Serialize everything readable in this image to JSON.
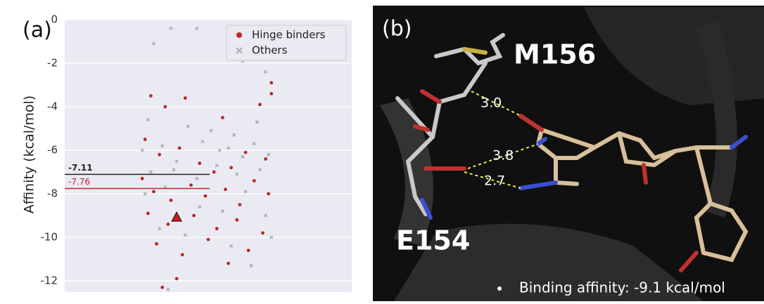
{
  "chart_data": {
    "type": "scatter",
    "label": "(a)",
    "ylabel": "Affinity (kcal/mol)",
    "xlim": [
      0,
      1
    ],
    "ylim": [
      -12.5,
      0
    ],
    "yticks": [
      0,
      -2,
      -4,
      -6,
      -8,
      -10,
      -12
    ],
    "grid": true,
    "legend": "upper right",
    "series": [
      {
        "name": "Hinge binders",
        "color": "#b8282a",
        "marker": "circle",
        "x": [
          0.3,
          0.35,
          0.42,
          0.55,
          0.68,
          0.72,
          0.28,
          0.33,
          0.4,
          0.47,
          0.52,
          0.58,
          0.63,
          0.7,
          0.27,
          0.31,
          0.37,
          0.44,
          0.49,
          0.56,
          0.61,
          0.66,
          0.71,
          0.29,
          0.36,
          0.45,
          0.53,
          0.6,
          0.69,
          0.32,
          0.41,
          0.5,
          0.64,
          0.34,
          0.39,
          0.57,
          0.72
        ],
        "values": [
          -3.5,
          -4.0,
          -3.6,
          -4.5,
          -3.9,
          -3.4,
          -5.5,
          -6.2,
          -5.9,
          -6.6,
          -7.0,
          -6.8,
          -6.1,
          -6.4,
          -7.3,
          -7.9,
          -8.3,
          -7.6,
          -8.1,
          -7.8,
          -8.5,
          -7.4,
          -8.0,
          -8.9,
          -9.4,
          -9.0,
          -9.6,
          -9.2,
          -9.8,
          -10.3,
          -10.8,
          -10.1,
          -10.6,
          -12.3,
          -11.9,
          -11.2,
          -2.9
        ]
      },
      {
        "name": "Others",
        "color": "#a9aab0",
        "marker": "x",
        "x": [
          0.37,
          0.46,
          0.31,
          0.62,
          0.7,
          0.29,
          0.43,
          0.51,
          0.59,
          0.67,
          0.27,
          0.34,
          0.39,
          0.48,
          0.54,
          0.57,
          0.62,
          0.66,
          0.71,
          0.3,
          0.38,
          0.46,
          0.53,
          0.6,
          0.68,
          0.28,
          0.35,
          0.47,
          0.55,
          0.63,
          0.7,
          0.33,
          0.42,
          0.58,
          0.65,
          0.36,
          0.72
        ],
        "values": [
          -0.4,
          -0.4,
          -1.1,
          -1.9,
          -2.4,
          -4.6,
          -4.9,
          -5.1,
          -5.3,
          -4.7,
          -6.0,
          -5.8,
          -6.5,
          -5.6,
          -6.0,
          -5.9,
          -6.3,
          -5.7,
          -6.2,
          -7.0,
          -6.9,
          -7.3,
          -6.7,
          -7.1,
          -6.9,
          -8.0,
          -7.7,
          -8.6,
          -8.8,
          -7.9,
          -9.0,
          -9.6,
          -9.9,
          -10.4,
          -11.3,
          -12.4,
          -10.0
        ]
      }
    ],
    "reference_lines": [
      {
        "value": -7.11,
        "color": "#222222"
      },
      {
        "value": -7.76,
        "color": "#b8282a"
      }
    ],
    "highlight": {
      "x": 0.39,
      "y": -9.1,
      "color": "#d11a1a"
    }
  },
  "panel_b": {
    "label": "(b)",
    "residues": [
      "M156",
      "E154"
    ],
    "distances": [
      "3.0",
      "3.8",
      "2.7"
    ],
    "note": "Binding affinity: -9.1 kcal/mol"
  }
}
